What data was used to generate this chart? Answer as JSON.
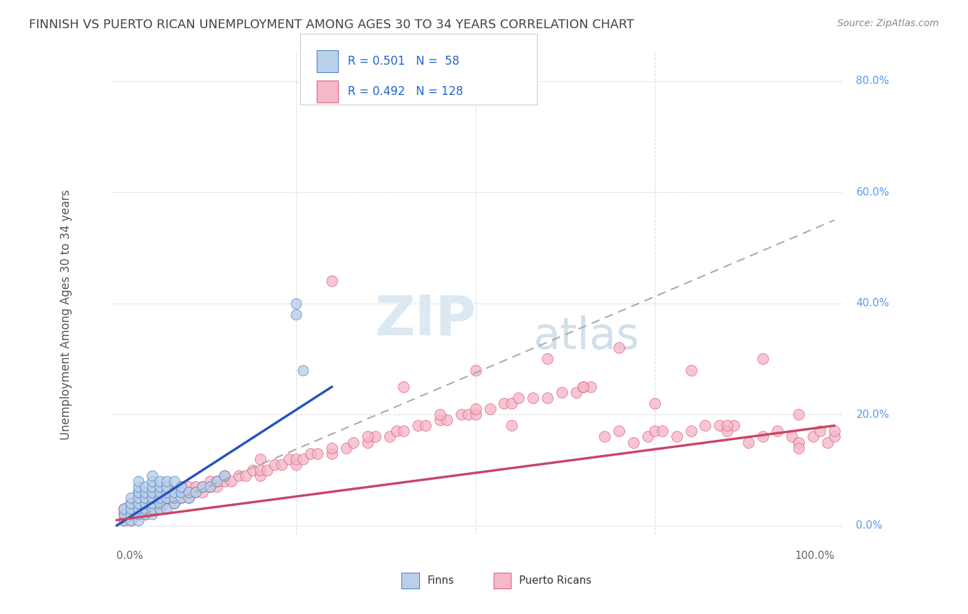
{
  "title": "FINNISH VS PUERTO RICAN UNEMPLOYMENT AMONG AGES 30 TO 34 YEARS CORRELATION CHART",
  "source": "Source: ZipAtlas.com",
  "ylabel": "Unemployment Among Ages 30 to 34 years",
  "legend_label1": "Finns",
  "legend_label2": "Puerto Ricans",
  "r1": 0.501,
  "n1": 58,
  "r2": 0.492,
  "n2": 128,
  "blue_fill": "#b8d0e8",
  "pink_fill": "#f5b8c8",
  "blue_edge": "#4477cc",
  "pink_edge": "#dd5577",
  "blue_line": "#2255bb",
  "pink_line": "#cc4466",
  "dashed_line": "#aaaaaa",
  "legend_text_color": "#2266cc",
  "title_color": "#444444",
  "source_color": "#888888",
  "grid_color": "#dddddd",
  "bg_color": "#ffffff",
  "ytick_color": "#5599ee",
  "ytick_vals": [
    0,
    20,
    40,
    60,
    80
  ],
  "ytick_labels": [
    "0.0%",
    "20.0%",
    "40.0%",
    "60.0%",
    "80.0%"
  ],
  "xtick_left": "0.0%",
  "xtick_right": "100.0%",
  "watermark_zip_color": "#e0e8f0",
  "watermark_atlas_color": "#d0dcea",
  "finn_x": [
    1,
    1,
    1,
    2,
    2,
    2,
    2,
    2,
    3,
    3,
    3,
    3,
    3,
    3,
    3,
    3,
    4,
    4,
    4,
    4,
    4,
    4,
    5,
    5,
    5,
    5,
    5,
    5,
    5,
    5,
    6,
    6,
    6,
    6,
    6,
    6,
    7,
    7,
    7,
    7,
    7,
    8,
    8,
    8,
    8,
    9,
    9,
    9,
    10,
    10,
    11,
    12,
    13,
    14,
    15,
    25,
    25,
    26
  ],
  "finn_y": [
    1,
    2,
    3,
    1,
    2,
    3,
    4,
    5,
    1,
    2,
    3,
    4,
    5,
    6,
    7,
    8,
    2,
    3,
    4,
    5,
    6,
    7,
    2,
    3,
    4,
    5,
    6,
    7,
    8,
    9,
    3,
    4,
    5,
    6,
    7,
    8,
    3,
    5,
    6,
    7,
    8,
    4,
    5,
    6,
    8,
    5,
    6,
    7,
    5,
    6,
    6,
    7,
    7,
    8,
    9,
    38,
    40,
    28
  ],
  "pr_x": [
    1,
    1,
    1,
    2,
    2,
    2,
    2,
    3,
    3,
    3,
    3,
    3,
    4,
    4,
    4,
    4,
    4,
    5,
    5,
    5,
    5,
    6,
    6,
    6,
    6,
    7,
    7,
    7,
    7,
    8,
    8,
    8,
    9,
    9,
    9,
    10,
    10,
    10,
    11,
    11,
    12,
    12,
    13,
    13,
    14,
    14,
    15,
    15,
    16,
    17,
    18,
    19,
    20,
    20,
    21,
    22,
    23,
    24,
    25,
    25,
    26,
    27,
    28,
    30,
    30,
    32,
    33,
    35,
    36,
    38,
    39,
    40,
    42,
    43,
    45,
    46,
    48,
    49,
    50,
    50,
    52,
    54,
    55,
    56,
    58,
    60,
    62,
    64,
    65,
    66,
    68,
    70,
    72,
    74,
    75,
    76,
    78,
    80,
    82,
    84,
    85,
    86,
    88,
    90,
    92,
    94,
    95,
    97,
    98,
    99,
    100,
    100,
    50,
    60,
    70,
    80,
    90,
    95,
    30,
    40,
    45,
    55,
    65,
    75,
    85,
    95,
    20,
    35
  ],
  "pr_y": [
    1,
    2,
    3,
    1,
    2,
    3,
    4,
    2,
    3,
    4,
    5,
    6,
    2,
    3,
    4,
    5,
    6,
    3,
    4,
    5,
    6,
    3,
    4,
    5,
    6,
    4,
    5,
    6,
    7,
    4,
    5,
    6,
    5,
    6,
    7,
    5,
    6,
    7,
    6,
    7,
    6,
    7,
    7,
    8,
    7,
    8,
    8,
    9,
    8,
    9,
    9,
    10,
    9,
    10,
    10,
    11,
    11,
    12,
    11,
    12,
    12,
    13,
    13,
    13,
    14,
    14,
    15,
    15,
    16,
    16,
    17,
    17,
    18,
    18,
    19,
    19,
    20,
    20,
    20,
    21,
    21,
    22,
    22,
    23,
    23,
    23,
    24,
    24,
    25,
    25,
    16,
    17,
    15,
    16,
    17,
    17,
    16,
    17,
    18,
    18,
    17,
    18,
    15,
    16,
    17,
    16,
    15,
    16,
    17,
    15,
    16,
    17,
    28,
    30,
    32,
    28,
    30,
    14,
    44,
    25,
    20,
    18,
    25,
    22,
    18,
    20,
    12,
    16
  ]
}
